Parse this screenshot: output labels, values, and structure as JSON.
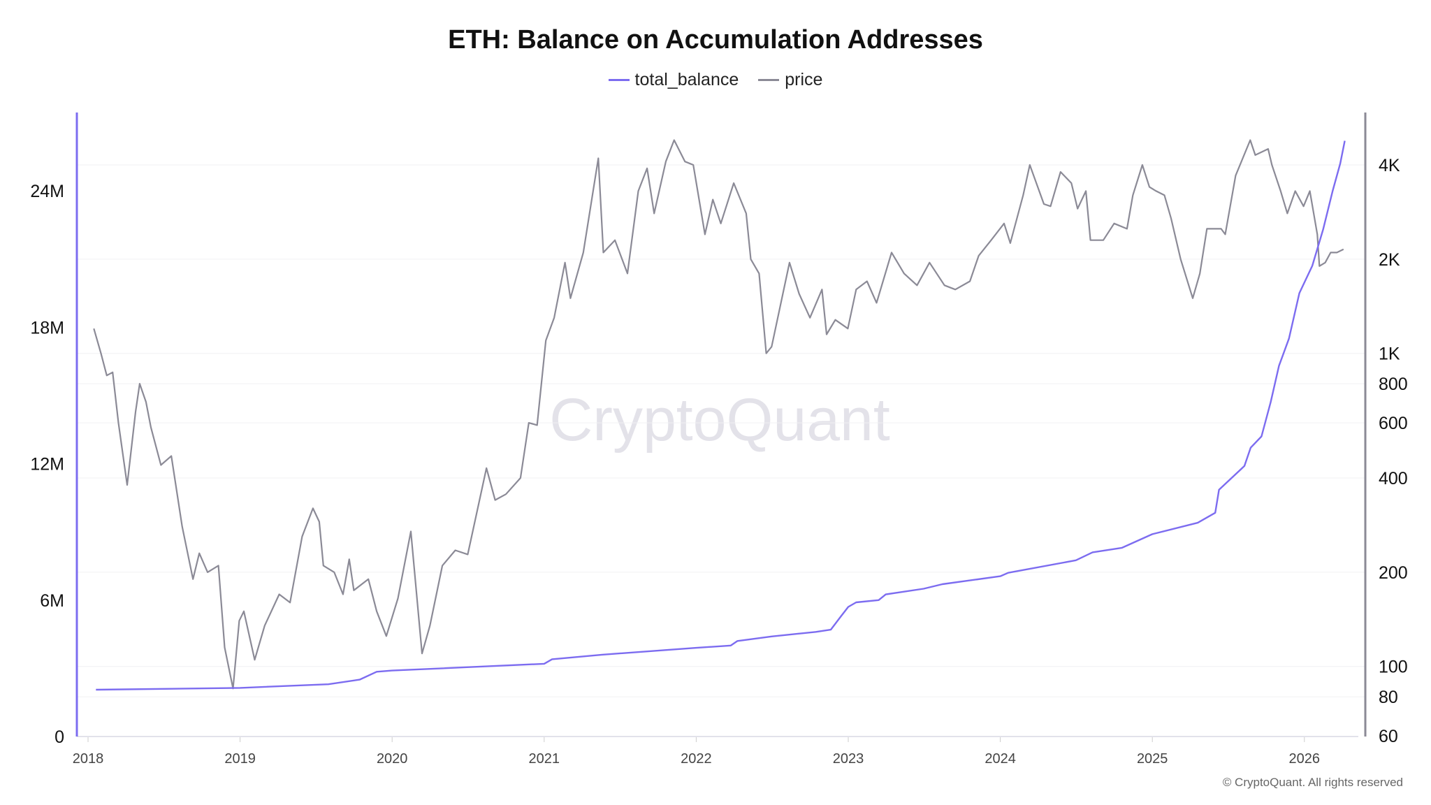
{
  "title": "ETH: Balance on Accumulation Addresses",
  "watermark": "CryptoQuant",
  "copyright": "© CryptoQuant. All rights reserved",
  "colors": {
    "total_balance": "#7c6cf0",
    "price": "#8b8a96"
  },
  "chart_data": {
    "type": "line",
    "title": "ETH: Balance on Accumulation Addresses",
    "legend": "top-center",
    "x_ticks": [
      "2018",
      "2019",
      "2020",
      "2021",
      "2022",
      "2023",
      "2024",
      "2025",
      "2026"
    ],
    "left_axis": {
      "scale": "linear",
      "range": [
        0,
        27000000
      ],
      "ticks": [
        {
          "v": 0,
          "label": "0"
        },
        {
          "v": 6000000,
          "label": "6M"
        },
        {
          "v": 12000000,
          "label": "12M"
        },
        {
          "v": 18000000,
          "label": "18M"
        },
        {
          "v": 24000000,
          "label": "24M"
        }
      ]
    },
    "right_axis": {
      "scale": "log",
      "range": [
        60,
        5200
      ],
      "ticks": [
        {
          "v": 60,
          "label": "60"
        },
        {
          "v": 80,
          "label": "80"
        },
        {
          "v": 100,
          "label": "100"
        },
        {
          "v": 200,
          "label": "200"
        },
        {
          "v": 400,
          "label": "400"
        },
        {
          "v": 600,
          "label": "600"
        },
        {
          "v": 800,
          "label": "800"
        },
        {
          "v": 1000,
          "label": "1K"
        },
        {
          "v": 2000,
          "label": "2K"
        },
        {
          "v": 4000,
          "label": "4K"
        }
      ]
    },
    "grid": "horizontal",
    "series": [
      {
        "name": "total_balance",
        "axis": "left",
        "points": [
          [
            "2018-01-20",
            2060000
          ],
          [
            "2019-01-01",
            2140000
          ],
          [
            "2019-08-01",
            2300000
          ],
          [
            "2019-10-15",
            2500000
          ],
          [
            "2019-11-25",
            2850000
          ],
          [
            "2020-01-01",
            2900000
          ],
          [
            "2021-01-01",
            3200000
          ],
          [
            "2021-01-20",
            3400000
          ],
          [
            "2021-05-20",
            3600000
          ],
          [
            "2022-01-01",
            3900000
          ],
          [
            "2022-03-25",
            4000000
          ],
          [
            "2022-04-10",
            4200000
          ],
          [
            "2022-07-01",
            4400000
          ],
          [
            "2022-10-15",
            4600000
          ],
          [
            "2022-11-20",
            4700000
          ],
          [
            "2022-12-15",
            5300000
          ],
          [
            "2023-01-01",
            5700000
          ],
          [
            "2023-01-20",
            5900000
          ],
          [
            "2023-03-15",
            6000000
          ],
          [
            "2023-04-01",
            6250000
          ],
          [
            "2023-07-01",
            6500000
          ],
          [
            "2023-08-15",
            6700000
          ],
          [
            "2024-01-01",
            7050000
          ],
          [
            "2024-01-20",
            7200000
          ],
          [
            "2024-07-01",
            7750000
          ],
          [
            "2024-08-10",
            8100000
          ],
          [
            "2024-10-20",
            8300000
          ],
          [
            "2025-01-01",
            8900000
          ],
          [
            "2025-04-20",
            9400000
          ],
          [
            "2025-06-01",
            9840000
          ],
          [
            "2025-06-10",
            10850000
          ],
          [
            "2025-08-10",
            11900000
          ],
          [
            "2025-08-25",
            12700000
          ],
          [
            "2025-09-20",
            13200000
          ],
          [
            "2025-10-12",
            14700000
          ],
          [
            "2025-11-01",
            16300000
          ],
          [
            "2025-11-25",
            17500000
          ],
          [
            "2025-12-20",
            19500000
          ],
          [
            "2026-01-20",
            20700000
          ],
          [
            "2026-02-15",
            22300000
          ],
          [
            "2026-03-10",
            24000000
          ],
          [
            "2026-03-28",
            25200000
          ],
          [
            "2026-04-08",
            26200000
          ]
        ]
      },
      {
        "name": "price",
        "axis": "right",
        "points": [
          [
            "2018-01-15",
            1200
          ],
          [
            "2018-02-01",
            1000
          ],
          [
            "2018-02-15",
            850
          ],
          [
            "2018-03-01",
            870
          ],
          [
            "2018-03-15",
            600
          ],
          [
            "2018-04-05",
            380
          ],
          [
            "2018-04-25",
            650
          ],
          [
            "2018-05-05",
            800
          ],
          [
            "2018-05-20",
            700
          ],
          [
            "2018-06-01",
            580
          ],
          [
            "2018-06-25",
            440
          ],
          [
            "2018-07-20",
            470
          ],
          [
            "2018-08-15",
            280
          ],
          [
            "2018-09-10",
            190
          ],
          [
            "2018-09-25",
            230
          ],
          [
            "2018-10-15",
            200
          ],
          [
            "2018-11-10",
            210
          ],
          [
            "2018-11-25",
            115
          ],
          [
            "2018-12-15",
            85
          ],
          [
            "2018-12-30",
            140
          ],
          [
            "2019-01-10",
            150
          ],
          [
            "2019-02-05",
            105
          ],
          [
            "2019-03-01",
            135
          ],
          [
            "2019-04-05",
            170
          ],
          [
            "2019-05-01",
            160
          ],
          [
            "2019-05-30",
            260
          ],
          [
            "2019-06-25",
            320
          ],
          [
            "2019-07-10",
            290
          ],
          [
            "2019-07-20",
            210
          ],
          [
            "2019-08-15",
            200
          ],
          [
            "2019-09-05",
            170
          ],
          [
            "2019-09-20",
            220
          ],
          [
            "2019-10-01",
            175
          ],
          [
            "2019-11-05",
            190
          ],
          [
            "2019-11-25",
            150
          ],
          [
            "2019-12-18",
            125
          ],
          [
            "2020-01-15",
            165
          ],
          [
            "2020-02-15",
            270
          ],
          [
            "2020-03-13",
            110
          ],
          [
            "2020-04-01",
            135
          ],
          [
            "2020-05-01",
            210
          ],
          [
            "2020-06-01",
            235
          ],
          [
            "2020-07-01",
            228
          ],
          [
            "2020-08-15",
            430
          ],
          [
            "2020-09-05",
            340
          ],
          [
            "2020-10-01",
            355
          ],
          [
            "2020-11-05",
            400
          ],
          [
            "2020-11-25",
            600
          ],
          [
            "2020-12-15",
            590
          ],
          [
            "2021-01-05",
            1100
          ],
          [
            "2021-01-25",
            1300
          ],
          [
            "2021-02-20",
            1950
          ],
          [
            "2021-03-05",
            1500
          ],
          [
            "2021-04-05",
            2100
          ],
          [
            "2021-05-11",
            4200
          ],
          [
            "2021-05-23",
            2100
          ],
          [
            "2021-06-20",
            2300
          ],
          [
            "2021-07-20",
            1800
          ],
          [
            "2021-08-15",
            3300
          ],
          [
            "2021-09-05",
            3900
          ],
          [
            "2021-09-22",
            2800
          ],
          [
            "2021-10-20",
            4100
          ],
          [
            "2021-11-09",
            4800
          ],
          [
            "2021-12-05",
            4100
          ],
          [
            "2021-12-25",
            4000
          ],
          [
            "2022-01-22",
            2400
          ],
          [
            "2022-02-10",
            3100
          ],
          [
            "2022-03-01",
            2600
          ],
          [
            "2022-04-01",
            3500
          ],
          [
            "2022-05-01",
            2800
          ],
          [
            "2022-05-12",
            2000
          ],
          [
            "2022-06-01",
            1800
          ],
          [
            "2022-06-18",
            1000
          ],
          [
            "2022-07-01",
            1050
          ],
          [
            "2022-08-13",
            1950
          ],
          [
            "2022-09-05",
            1550
          ],
          [
            "2022-10-01",
            1300
          ],
          [
            "2022-10-30",
            1600
          ],
          [
            "2022-11-10",
            1150
          ],
          [
            "2022-12-01",
            1280
          ],
          [
            "2022-12-31",
            1200
          ],
          [
            "2023-01-20",
            1600
          ],
          [
            "2023-02-15",
            1700
          ],
          [
            "2023-03-10",
            1450
          ],
          [
            "2023-04-15",
            2100
          ],
          [
            "2023-05-15",
            1800
          ],
          [
            "2023-06-15",
            1650
          ],
          [
            "2023-07-15",
            1950
          ],
          [
            "2023-08-20",
            1650
          ],
          [
            "2023-09-15",
            1600
          ],
          [
            "2023-10-20",
            1700
          ],
          [
            "2023-11-10",
            2050
          ],
          [
            "2023-12-10",
            2300
          ],
          [
            "2024-01-10",
            2600
          ],
          [
            "2024-01-25",
            2250
          ],
          [
            "2024-02-25",
            3200
          ],
          [
            "2024-03-12",
            4000
          ],
          [
            "2024-04-15",
            3000
          ],
          [
            "2024-05-01",
            2950
          ],
          [
            "2024-05-25",
            3800
          ],
          [
            "2024-06-20",
            3500
          ],
          [
            "2024-07-05",
            2900
          ],
          [
            "2024-07-25",
            3300
          ],
          [
            "2024-08-05",
            2300
          ],
          [
            "2024-09-05",
            2300
          ],
          [
            "2024-10-01",
            2600
          ],
          [
            "2024-11-01",
            2500
          ],
          [
            "2024-11-15",
            3200
          ],
          [
            "2024-12-08",
            4000
          ],
          [
            "2024-12-25",
            3400
          ],
          [
            "2025-01-10",
            3300
          ],
          [
            "2025-01-30",
            3200
          ],
          [
            "2025-02-15",
            2700
          ],
          [
            "2025-03-10",
            2000
          ],
          [
            "2025-04-08",
            1500
          ],
          [
            "2025-04-25",
            1800
          ],
          [
            "2025-05-12",
            2500
          ],
          [
            "2025-06-15",
            2500
          ],
          [
            "2025-06-25",
            2400
          ],
          [
            "2025-07-20",
            3700
          ],
          [
            "2025-08-24",
            4800
          ],
          [
            "2025-09-05",
            4300
          ],
          [
            "2025-10-06",
            4500
          ],
          [
            "2025-10-15",
            4000
          ],
          [
            "2025-11-05",
            3300
          ],
          [
            "2025-11-21",
            2800
          ],
          [
            "2025-12-10",
            3300
          ],
          [
            "2025-12-30",
            2950
          ],
          [
            "2026-01-14",
            3300
          ],
          [
            "2026-02-01",
            2400
          ],
          [
            "2026-02-06",
            1900
          ],
          [
            "2026-02-20",
            1950
          ],
          [
            "2026-03-05",
            2100
          ],
          [
            "2026-03-20",
            2100
          ],
          [
            "2026-04-05",
            2150
          ]
        ]
      }
    ]
  }
}
